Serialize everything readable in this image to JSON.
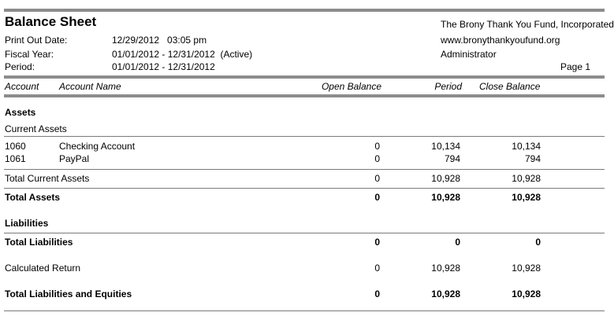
{
  "header": {
    "title": "Balance Sheet",
    "organization": "The Brony Thank You Fund, Incorporated",
    "website": "www.bronythankyoufund.org",
    "user": "Administrator",
    "page": "Page 1",
    "meta": [
      {
        "label": "Print Out Date:",
        "value": "12/29/2012   03:05 pm"
      },
      {
        "label": "Fiscal Year:",
        "value": "01/01/2012 - 12/31/2012  (Active)"
      },
      {
        "label": "Period:",
        "value": "01/01/2012 - 12/31/2012"
      }
    ]
  },
  "columns": {
    "account": "Account",
    "account_name": "Account Name",
    "open_balance": "Open Balance",
    "period": "Period",
    "close_balance": "Close Balance"
  },
  "sections": {
    "assets_title": "Assets",
    "current_assets_title": "Current Assets",
    "liabilities_title": "Liabilities"
  },
  "rows": {
    "checking": {
      "account": "1060",
      "name": "Checking Account",
      "open": "0",
      "period": "10,134",
      "close": "10,134"
    },
    "paypal": {
      "account": "1061",
      "name": "PayPal",
      "open": "0",
      "period": "794",
      "close": "794"
    },
    "total_current_assets": {
      "label": "Total Current Assets",
      "open": "0",
      "period": "10,928",
      "close": "10,928"
    },
    "total_assets": {
      "label": "Total Assets",
      "open": "0",
      "period": "10,928",
      "close": "10,928"
    },
    "total_liabilities": {
      "label": "Total Liabilities",
      "open": "0",
      "period": "0",
      "close": "0"
    },
    "calculated_return": {
      "label": "Calculated Return",
      "open": "0",
      "period": "10,928",
      "close": "10,928"
    },
    "total_liabilities_equities": {
      "label": "Total Liabilities and Equities",
      "open": "0",
      "period": "10,928",
      "close": "10,928"
    }
  }
}
